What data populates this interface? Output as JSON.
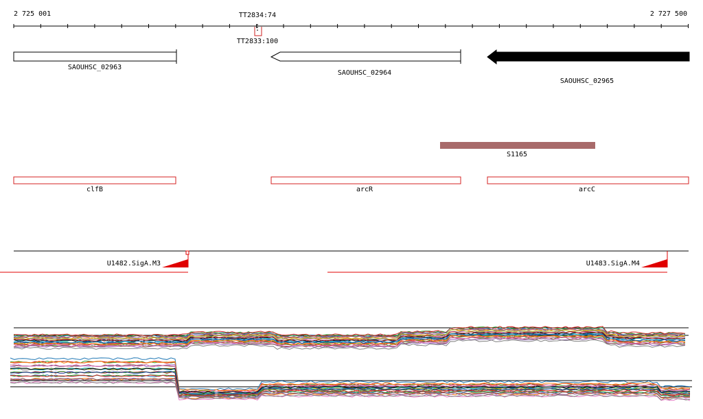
{
  "ruler": {
    "start_label": "2 725 001",
    "end_label": "2 727 500"
  },
  "terminators": {
    "upper_label": "TT2834:74",
    "lower_label": "TT2833:100"
  },
  "genes": [
    {
      "id": "SAOUHSC_02963",
      "label": "SAOUHSC_02963",
      "strand": "+",
      "filled": false
    },
    {
      "id": "SAOUHSC_02964",
      "label": "SAOUHSC_02964",
      "strand": "-",
      "filled": false
    },
    {
      "id": "SAOUHSC_02965",
      "label": "SAOUHSC_02965",
      "strand": "-",
      "filled": true
    }
  ],
  "srna": {
    "label": "S1165",
    "color": "#a86a6a"
  },
  "annotations": [
    {
      "label": "clfB"
    },
    {
      "label": "arcR"
    },
    {
      "label": "arcC"
    }
  ],
  "promoters": [
    {
      "label": "U1482.SigA.M3"
    },
    {
      "label": "U1483.SigA.M4"
    }
  ],
  "colors": {
    "gene_outline": "#000000",
    "annotation": "#d42020",
    "promoter": "#e00000",
    "expression_series": [
      "#1f77b4",
      "#2ca02c",
      "#d62728",
      "#ff7f0e",
      "#9467bd",
      "#8c564b",
      "#e377c2",
      "#7f7f7f",
      "#bcbd22",
      "#17becf",
      "#000000",
      "#b22222",
      "#3a9b3a",
      "#1a3a9b"
    ]
  }
}
